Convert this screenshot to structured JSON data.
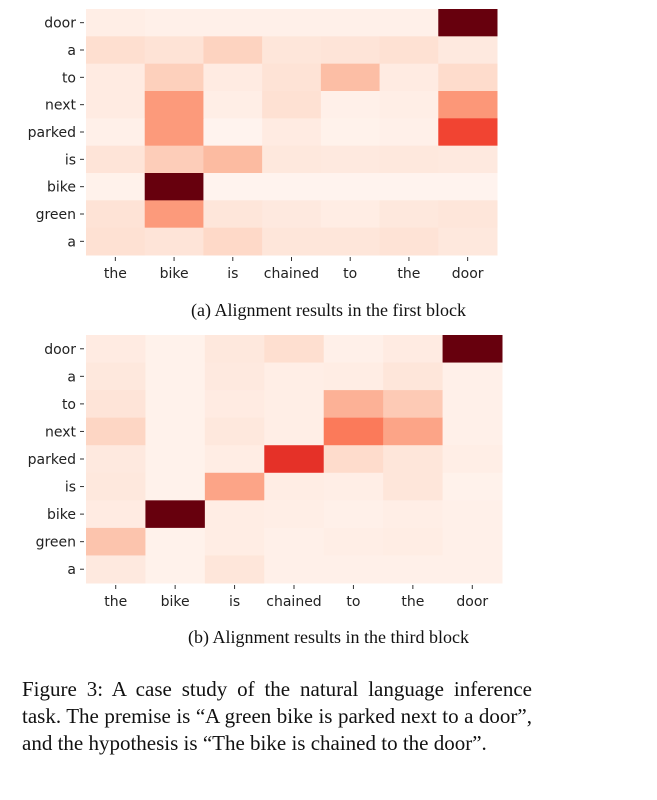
{
  "chart_data": [
    {
      "type": "heatmap",
      "caption": "(a) Alignment results in the first block",
      "row_labels": [
        "door",
        "a",
        "to",
        "next",
        "parked",
        "is",
        "bike",
        "green",
        "a"
      ],
      "col_labels": [
        "the",
        "bike",
        "is",
        "chained",
        "to",
        "the",
        "door"
      ],
      "values": [
        [
          0.04,
          0.03,
          0.03,
          0.03,
          0.03,
          0.03,
          1.0
        ],
        [
          0.13,
          0.11,
          0.17,
          0.09,
          0.1,
          0.12,
          0.07
        ],
        [
          0.06,
          0.18,
          0.06,
          0.11,
          0.24,
          0.06,
          0.14
        ],
        [
          0.06,
          0.35,
          0.04,
          0.12,
          0.03,
          0.04,
          0.36
        ],
        [
          0.03,
          0.35,
          0.01,
          0.06,
          0.02,
          0.03,
          0.6
        ],
        [
          0.1,
          0.19,
          0.25,
          0.08,
          0.07,
          0.08,
          0.07
        ],
        [
          0.02,
          1.0,
          0.01,
          0.01,
          0.01,
          0.01,
          0.01
        ],
        [
          0.11,
          0.35,
          0.09,
          0.07,
          0.05,
          0.08,
          0.09
        ],
        [
          0.12,
          0.1,
          0.15,
          0.09,
          0.09,
          0.11,
          0.08
        ]
      ],
      "colormap": "Reds"
    },
    {
      "type": "heatmap",
      "caption": "(b) Alignment results in the third block",
      "row_labels": [
        "door",
        "a",
        "to",
        "next",
        "parked",
        "is",
        "bike",
        "green",
        "a"
      ],
      "col_labels": [
        "the",
        "bike",
        "is",
        "chained",
        "to",
        "the",
        "door"
      ],
      "values": [
        [
          0.06,
          0.02,
          0.08,
          0.13,
          0.03,
          0.06,
          1.0
        ],
        [
          0.08,
          0.02,
          0.07,
          0.04,
          0.05,
          0.09,
          0.03
        ],
        [
          0.1,
          0.02,
          0.06,
          0.04,
          0.28,
          0.2,
          0.03
        ],
        [
          0.16,
          0.02,
          0.08,
          0.04,
          0.45,
          0.32,
          0.03
        ],
        [
          0.07,
          0.02,
          0.05,
          0.66,
          0.14,
          0.09,
          0.04
        ],
        [
          0.08,
          0.02,
          0.32,
          0.05,
          0.04,
          0.09,
          0.02
        ],
        [
          0.06,
          1.0,
          0.05,
          0.04,
          0.03,
          0.04,
          0.03
        ],
        [
          0.22,
          0.02,
          0.05,
          0.03,
          0.04,
          0.05,
          0.03
        ],
        [
          0.07,
          0.02,
          0.09,
          0.03,
          0.03,
          0.03,
          0.03
        ]
      ],
      "colormap": "Reds"
    }
  ],
  "figure_caption": "Figure 3: A case study of the natural language inference task. The premise is “A green bike is parked next to a door”, and the hypothesis is “The bike is chained to the door”."
}
